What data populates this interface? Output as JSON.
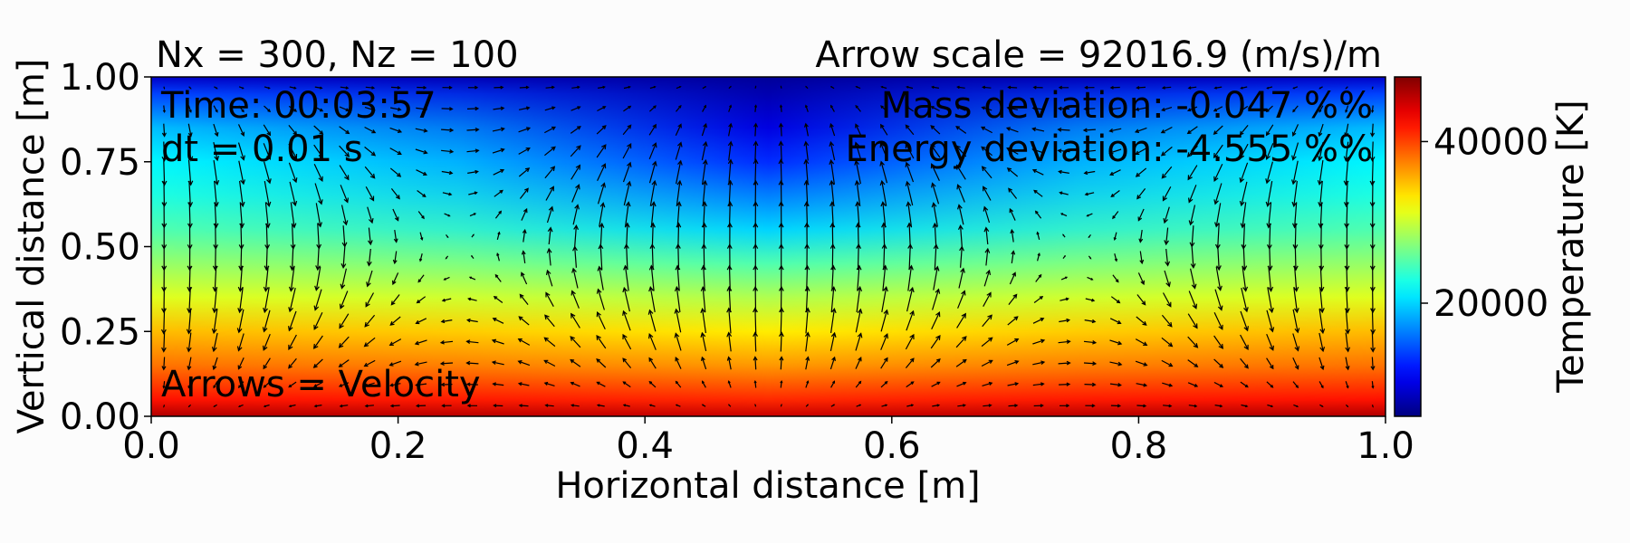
{
  "chart_data": {
    "type": "heatmap",
    "title_left": "Nx = 300, Nz = 100",
    "title_right": "Arrow scale = 92016.9 (m/s)/m",
    "xlabel": "Horizontal distance [m]",
    "ylabel": "Vertical distance [m]",
    "xlim": [
      0.0,
      1.0
    ],
    "ylim": [
      0.0,
      1.0
    ],
    "xticks": [
      "0.0",
      "0.2",
      "0.4",
      "0.6",
      "0.8",
      "1.0"
    ],
    "yticks": [
      "0.00",
      "0.25",
      "0.50",
      "0.75",
      "1.00"
    ],
    "annotations": {
      "time": "Time: 00:03:57",
      "dt": "dt = 0.01 s",
      "mass_deviation": "Mass deviation: -0.047 %%",
      "energy_deviation": "Energy deviation: -4.555 %%",
      "arrows_label": "Arrows = Velocity"
    },
    "colorbar": {
      "label": "Temperature [K]",
      "colormap": "jet",
      "range": [
        6000,
        48000
      ],
      "ticks": [
        "20000",
        "40000"
      ]
    },
    "temperature_profile": {
      "z": [
        0.0,
        0.05,
        0.15,
        0.25,
        0.35,
        0.45,
        0.55,
        0.65,
        0.75,
        0.85,
        0.95,
        1.0
      ],
      "edge_K": [
        46000,
        42000,
        38000,
        35000,
        31000,
        28000,
        25000,
        23000,
        21500,
        19000,
        14000,
        9000
      ],
      "center_K": [
        45000,
        41000,
        36500,
        33000,
        29000,
        25000,
        20000,
        16500,
        13000,
        10000,
        8000,
        7000
      ]
    },
    "velocity_field": {
      "pattern": "two counter-rotating convection cells",
      "downflow_center_x": 0.5,
      "upflow_x": [
        0.0,
        1.0
      ]
    }
  }
}
